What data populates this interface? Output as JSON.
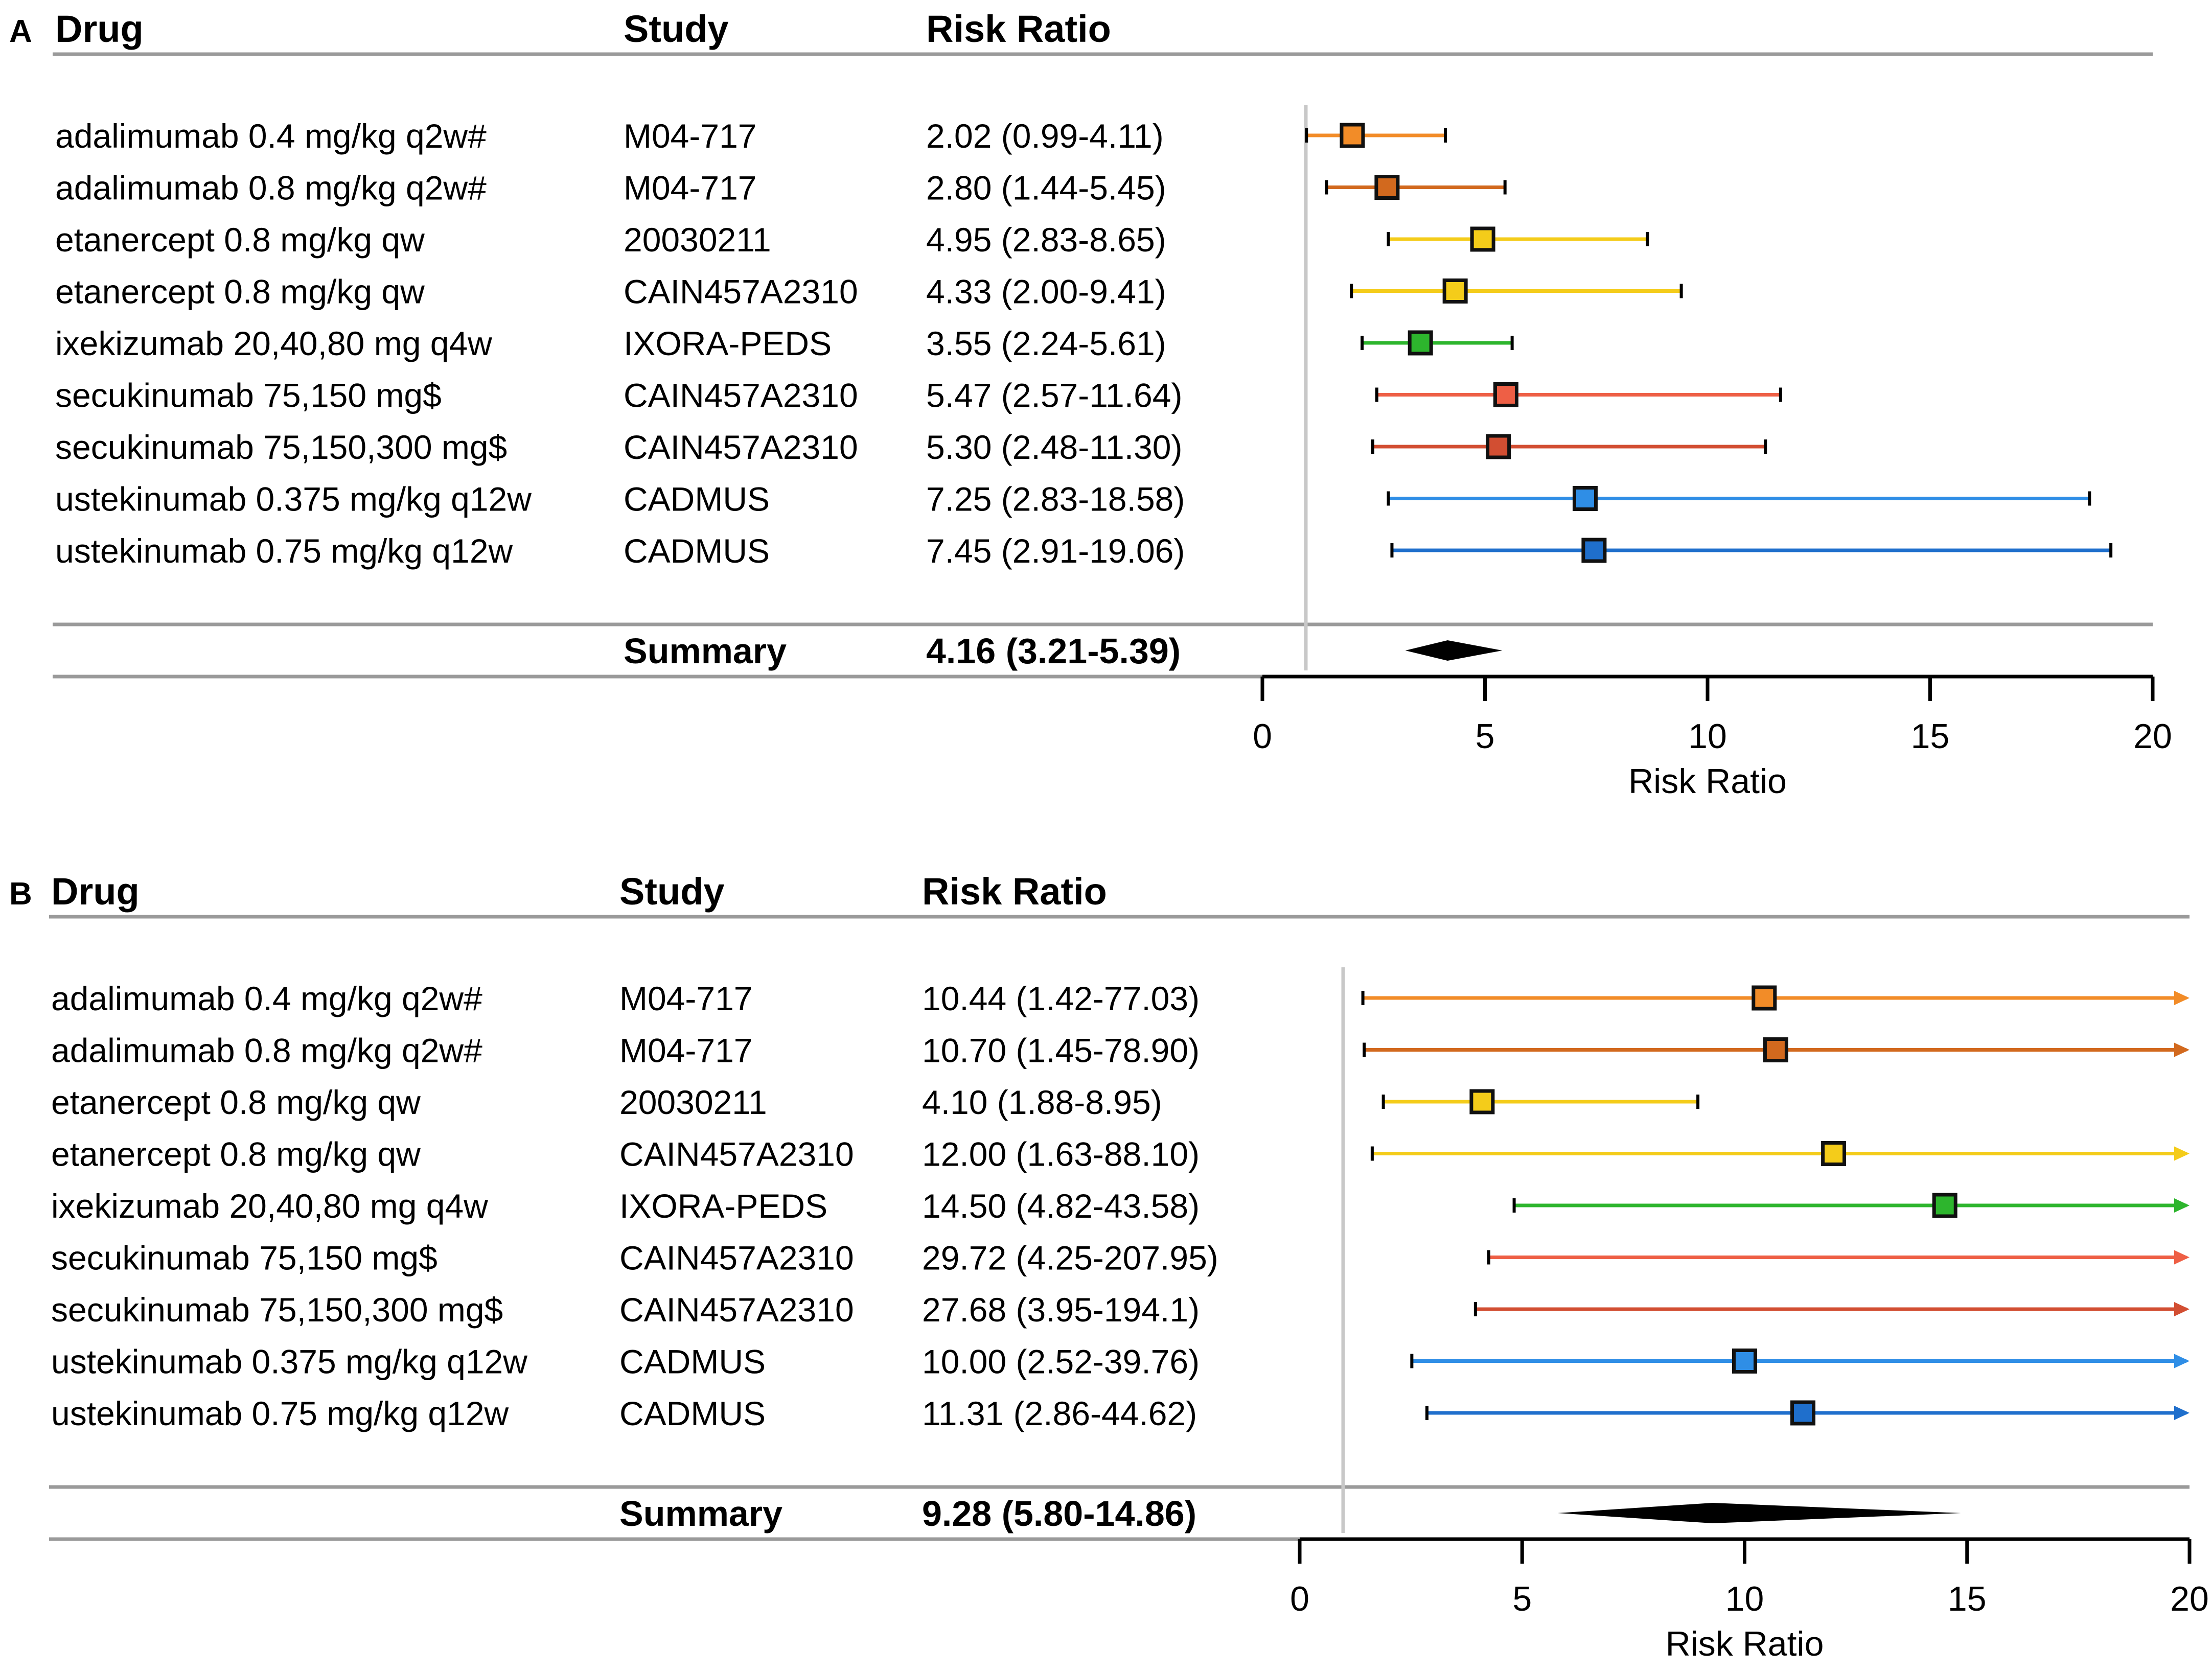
{
  "chart_data": [
    {
      "type": "forest",
      "panel_label": "A",
      "headers": {
        "drug": "Drug",
        "study": "Study",
        "ratio": "Risk Ratio"
      },
      "xlabel": "Risk Ratio",
      "xlim": [
        0,
        20
      ],
      "xticks": [
        "0",
        "5",
        "10",
        "15",
        "20"
      ],
      "reference_line": 1,
      "rows": [
        {
          "drug": "adalimumab 0.4 mg/kg q2w#",
          "study": "M04-717",
          "ratio_text": "2.02 (0.99-4.11)",
          "est": 2.02,
          "lo": 0.99,
          "hi": 4.11,
          "color": "#f28c28"
        },
        {
          "drug": "adalimumab 0.8 mg/kg q2w#",
          "study": "M04-717",
          "ratio_text": "2.80 (1.44-5.45)",
          "est": 2.8,
          "lo": 1.44,
          "hi": 5.45,
          "color": "#d2691e"
        },
        {
          "drug": "etanercept 0.8 mg/kg qw",
          "study": "20030211",
          "ratio_text": "4.95 (2.83-8.65)",
          "est": 4.95,
          "lo": 2.83,
          "hi": 8.65,
          "color": "#f4cc1a"
        },
        {
          "drug": "etanercept 0.8 mg/kg qw",
          "study": "CAIN457A2310",
          "ratio_text": "4.33 (2.00-9.41)",
          "est": 4.33,
          "lo": 2.0,
          "hi": 9.41,
          "color": "#f4cc1a"
        },
        {
          "drug": "ixekizumab 20,40,80 mg q4w",
          "study": "IXORA-PEDS",
          "ratio_text": "3.55 (2.24-5.61)",
          "est": 3.55,
          "lo": 2.24,
          "hi": 5.61,
          "color": "#2db52d"
        },
        {
          "drug": "secukinumab 75,150 mg$",
          "study": "CAIN457A2310",
          "ratio_text": "5.47 (2.57-11.64)",
          "est": 5.47,
          "lo": 2.57,
          "hi": 11.64,
          "color": "#ee5f45"
        },
        {
          "drug": "secukinumab 75,150,300 mg$",
          "study": "CAIN457A2310",
          "ratio_text": "5.30 (2.48-11.30)",
          "est": 5.3,
          "lo": 2.48,
          "hi": 11.3,
          "color": "#d24e32"
        },
        {
          "drug": "ustekinumab 0.375 mg/kg q12w",
          "study": "CADMUS",
          "ratio_text": "7.25 (2.83-18.58)",
          "est": 7.25,
          "lo": 2.83,
          "hi": 18.58,
          "color": "#2f8ee6"
        },
        {
          "drug": "ustekinumab 0.75 mg/kg q12w",
          "study": "CADMUS",
          "ratio_text": "7.45 (2.91-19.06)",
          "est": 7.45,
          "lo": 2.91,
          "hi": 19.06,
          "color": "#1f6fcc"
        }
      ],
      "summary": {
        "label": "Summary",
        "ratio_text": "4.16 (3.21-5.39)",
        "est": 4.16,
        "lo": 3.21,
        "hi": 5.39
      }
    },
    {
      "type": "forest",
      "panel_label": "B",
      "headers": {
        "drug": "Drug",
        "study": "Study",
        "ratio": "Risk Ratio"
      },
      "xlabel": "Risk Ratio",
      "xlim": [
        0,
        20
      ],
      "xticks": [
        "0",
        "5",
        "10",
        "15",
        "20"
      ],
      "reference_line": 1,
      "rows": [
        {
          "drug": "adalimumab 0.4 mg/kg q2w#",
          "study": "M04-717",
          "ratio_text": "10.44 (1.42-77.03)",
          "est": 10.44,
          "lo": 1.42,
          "hi": 77.03,
          "color": "#f28c28"
        },
        {
          "drug": "adalimumab 0.8 mg/kg q2w#",
          "study": "M04-717",
          "ratio_text": "10.70 (1.45-78.90)",
          "est": 10.7,
          "lo": 1.45,
          "hi": 78.9,
          "color": "#d2691e"
        },
        {
          "drug": "etanercept 0.8 mg/kg qw",
          "study": "20030211",
          "ratio_text": "4.10 (1.88-8.95)",
          "est": 4.1,
          "lo": 1.88,
          "hi": 8.95,
          "color": "#f4cc1a"
        },
        {
          "drug": "etanercept 0.8 mg/kg qw",
          "study": "CAIN457A2310",
          "ratio_text": "12.00 (1.63-88.10)",
          "est": 12.0,
          "lo": 1.63,
          "hi": 88.1,
          "color": "#f4cc1a"
        },
        {
          "drug": "ixekizumab 20,40,80 mg q4w",
          "study": "IXORA-PEDS",
          "ratio_text": "14.50 (4.82-43.58)",
          "est": 14.5,
          "lo": 4.82,
          "hi": 43.58,
          "color": "#2db52d"
        },
        {
          "drug": "secukinumab 75,150 mg$",
          "study": "CAIN457A2310",
          "ratio_text": "29.72 (4.25-207.95)",
          "est": 29.72,
          "lo": 4.25,
          "hi": 207.95,
          "color": "#ee5f45"
        },
        {
          "drug": "secukinumab 75,150,300 mg$",
          "study": "CAIN457A2310",
          "ratio_text": "27.68 (3.95-194.1)",
          "est": 27.68,
          "lo": 3.95,
          "hi": 194.1,
          "color": "#d24e32"
        },
        {
          "drug": "ustekinumab 0.375 mg/kg q12w",
          "study": "CADMUS",
          "ratio_text": "10.00 (2.52-39.76)",
          "est": 10.0,
          "lo": 2.52,
          "hi": 39.76,
          "color": "#2f8ee6"
        },
        {
          "drug": "ustekinumab 0.75 mg/kg q12w",
          "study": "CADMUS",
          "ratio_text": "11.31 (2.86-44.62)",
          "est": 11.31,
          "lo": 2.86,
          "hi": 44.62,
          "color": "#1f6fcc"
        }
      ],
      "summary": {
        "label": "Summary",
        "ratio_text": "9.28 (5.80-14.86)",
        "est": 9.28,
        "lo": 5.8,
        "hi": 14.86
      }
    }
  ]
}
